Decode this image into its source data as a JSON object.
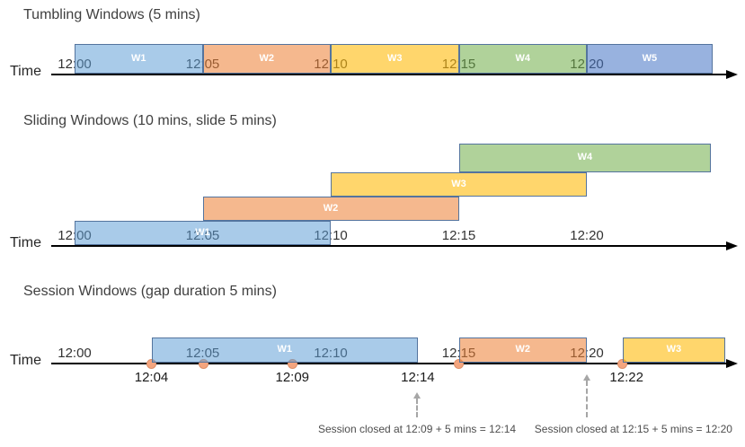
{
  "palette": {
    "blue": "rgba(91,155,213,0.52)",
    "orange": "rgba(237,125,49,0.55)",
    "yellow": "rgba(255,187,10,0.60)",
    "green": "rgba(112,173,71,0.55)",
    "periwinkle": "rgba(68,114,196,0.55)",
    "box_border": "#54749E",
    "dot_fill": "#F4A57F",
    "dot_border": "#DE9068",
    "dashed_arrow": "#A6A6A6",
    "timeline": "#000000"
  },
  "time_axis_label": "Time",
  "ticks": [
    {
      "min": 0,
      "label": "12:00"
    },
    {
      "min": 5,
      "label": "12:05"
    },
    {
      "min": 10,
      "label": "12:10"
    },
    {
      "min": 15,
      "label": "12:15"
    },
    {
      "min": 20,
      "label": "12:20"
    }
  ],
  "sections": [
    {
      "id": "tumbling",
      "title": "Tumbling Windows (5 mins)",
      "windows": [
        {
          "label": "W1",
          "start_min": 0,
          "end_min": 5,
          "color": "blue",
          "row": 0
        },
        {
          "label": "W2",
          "start_min": 5,
          "end_min": 10,
          "color": "orange",
          "row": 0
        },
        {
          "label": "W3",
          "start_min": 10,
          "end_min": 15,
          "color": "yellow",
          "row": 0
        },
        {
          "label": "W4",
          "start_min": 15,
          "end_min": 20,
          "color": "green",
          "row": 0
        },
        {
          "label": "W5",
          "start_min": 20,
          "end_min": 24.9,
          "color": "periwinkle",
          "row": 0
        }
      ]
    },
    {
      "id": "sliding",
      "title": "Sliding Windows (10 mins, slide 5 mins)",
      "windows": [
        {
          "label": "W1",
          "start_min": 0,
          "end_min": 10,
          "color": "blue",
          "row": 0
        },
        {
          "label": "W2",
          "start_min": 5,
          "end_min": 15,
          "color": "orange",
          "row": 1
        },
        {
          "label": "W3",
          "start_min": 10,
          "end_min": 20,
          "color": "yellow",
          "row": 2
        },
        {
          "label": "W4",
          "start_min": 15,
          "end_min": 24.85,
          "color": "green",
          "row": 3
        }
      ]
    },
    {
      "id": "session",
      "title": "Session Windows (gap duration 5 mins)",
      "windows": [
        {
          "label": "W1",
          "start_min": 3,
          "end_min": 13.4,
          "color": "blue",
          "row": 0
        },
        {
          "label": "W2",
          "start_min": 15,
          "end_min": 20,
          "color": "orange",
          "row": 0
        },
        {
          "label": "W3",
          "start_min": 21.4,
          "end_min": 25.4,
          "color": "yellow",
          "row": 0
        }
      ],
      "events": [
        {
          "min": 3
        },
        {
          "min": 5.05
        },
        {
          "min": 8.5
        },
        {
          "min": 15
        },
        {
          "min": 21.4
        }
      ],
      "event_labels": [
        {
          "min": 3,
          "label": "12:04"
        },
        {
          "min": 8.5,
          "label": "12:09"
        },
        {
          "min": 13.4,
          "label": "12:14"
        },
        {
          "min": 21.55,
          "label": "12:22"
        }
      ],
      "annotations": [
        {
          "text": "Session closed at 12:09 + 5 mins = 12:14",
          "arrow_min": 13.37,
          "text_center_min": 13.37,
          "arrow_gap_below_line": 33
        },
        {
          "text": "Session closed at 12:15 + 5 mins = 12:20",
          "arrow_min": 20,
          "text_center_min": 21.82,
          "arrow_gap_below_line": 13
        }
      ]
    }
  ]
}
